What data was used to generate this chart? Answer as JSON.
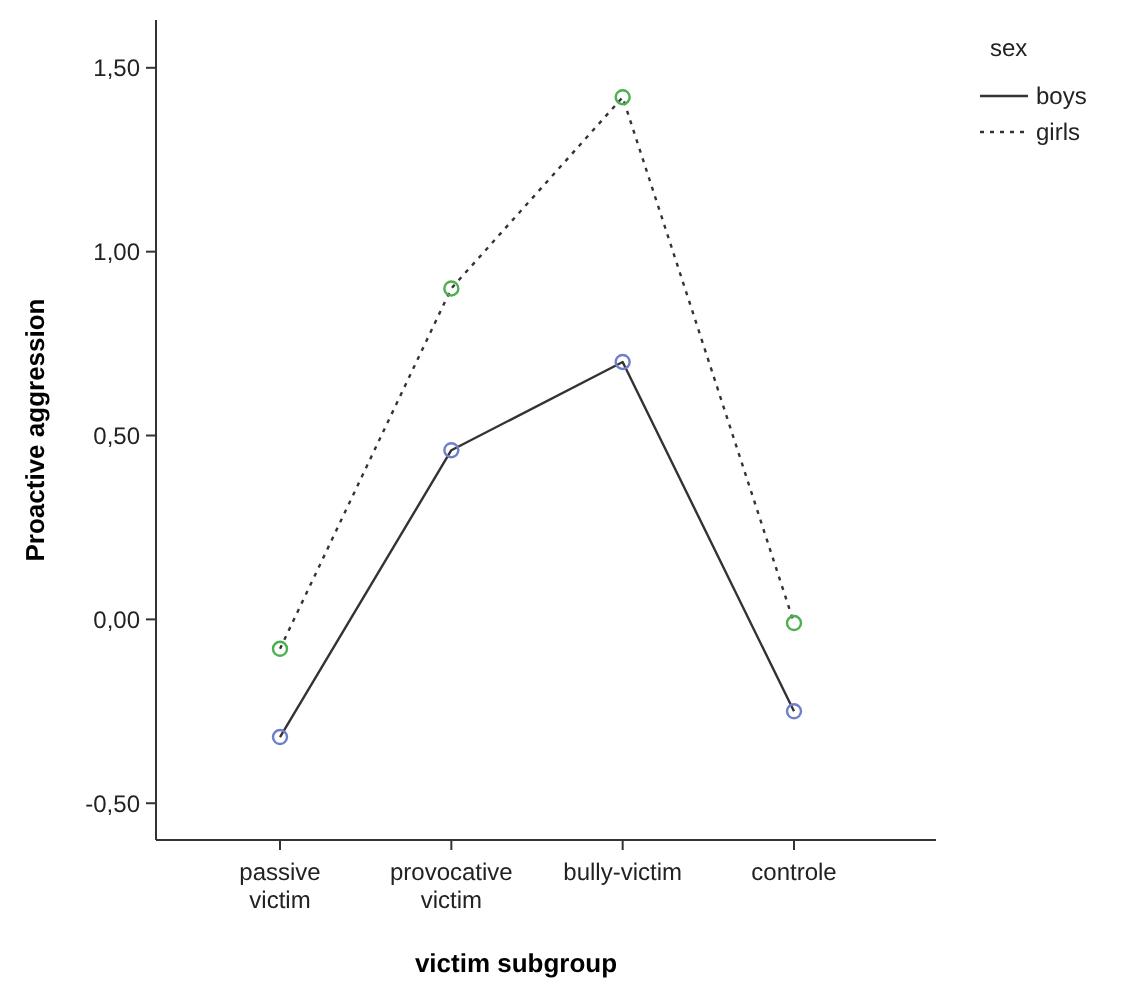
{
  "chart_data": {
    "type": "line",
    "xlabel": "victim subgroup",
    "ylabel": "Proactive aggression",
    "legend_title": "sex",
    "categories": [
      "passive victim",
      "provocative victim",
      "bully-victim",
      "controle"
    ],
    "series": [
      {
        "name": "boys",
        "color": "#6f7fc8",
        "line_style": "solid",
        "values": [
          -0.32,
          0.46,
          0.7,
          -0.25
        ]
      },
      {
        "name": "girls",
        "color": "#4caf50",
        "line_style": "dotted",
        "values": [
          -0.08,
          0.9,
          1.42,
          -0.01
        ]
      }
    ],
    "ylim": [
      -0.6,
      1.63
    ],
    "yticks": [
      {
        "value": -0.5,
        "label": "-0,50"
      },
      {
        "value": 0,
        "label": "0,00"
      },
      {
        "value": 0.5,
        "label": "0,50"
      },
      {
        "value": 1,
        "label": "1,00"
      },
      {
        "value": 1.5,
        "label": "1,50"
      }
    ],
    "grid": false,
    "legend": "top right",
    "marker": "circle"
  }
}
